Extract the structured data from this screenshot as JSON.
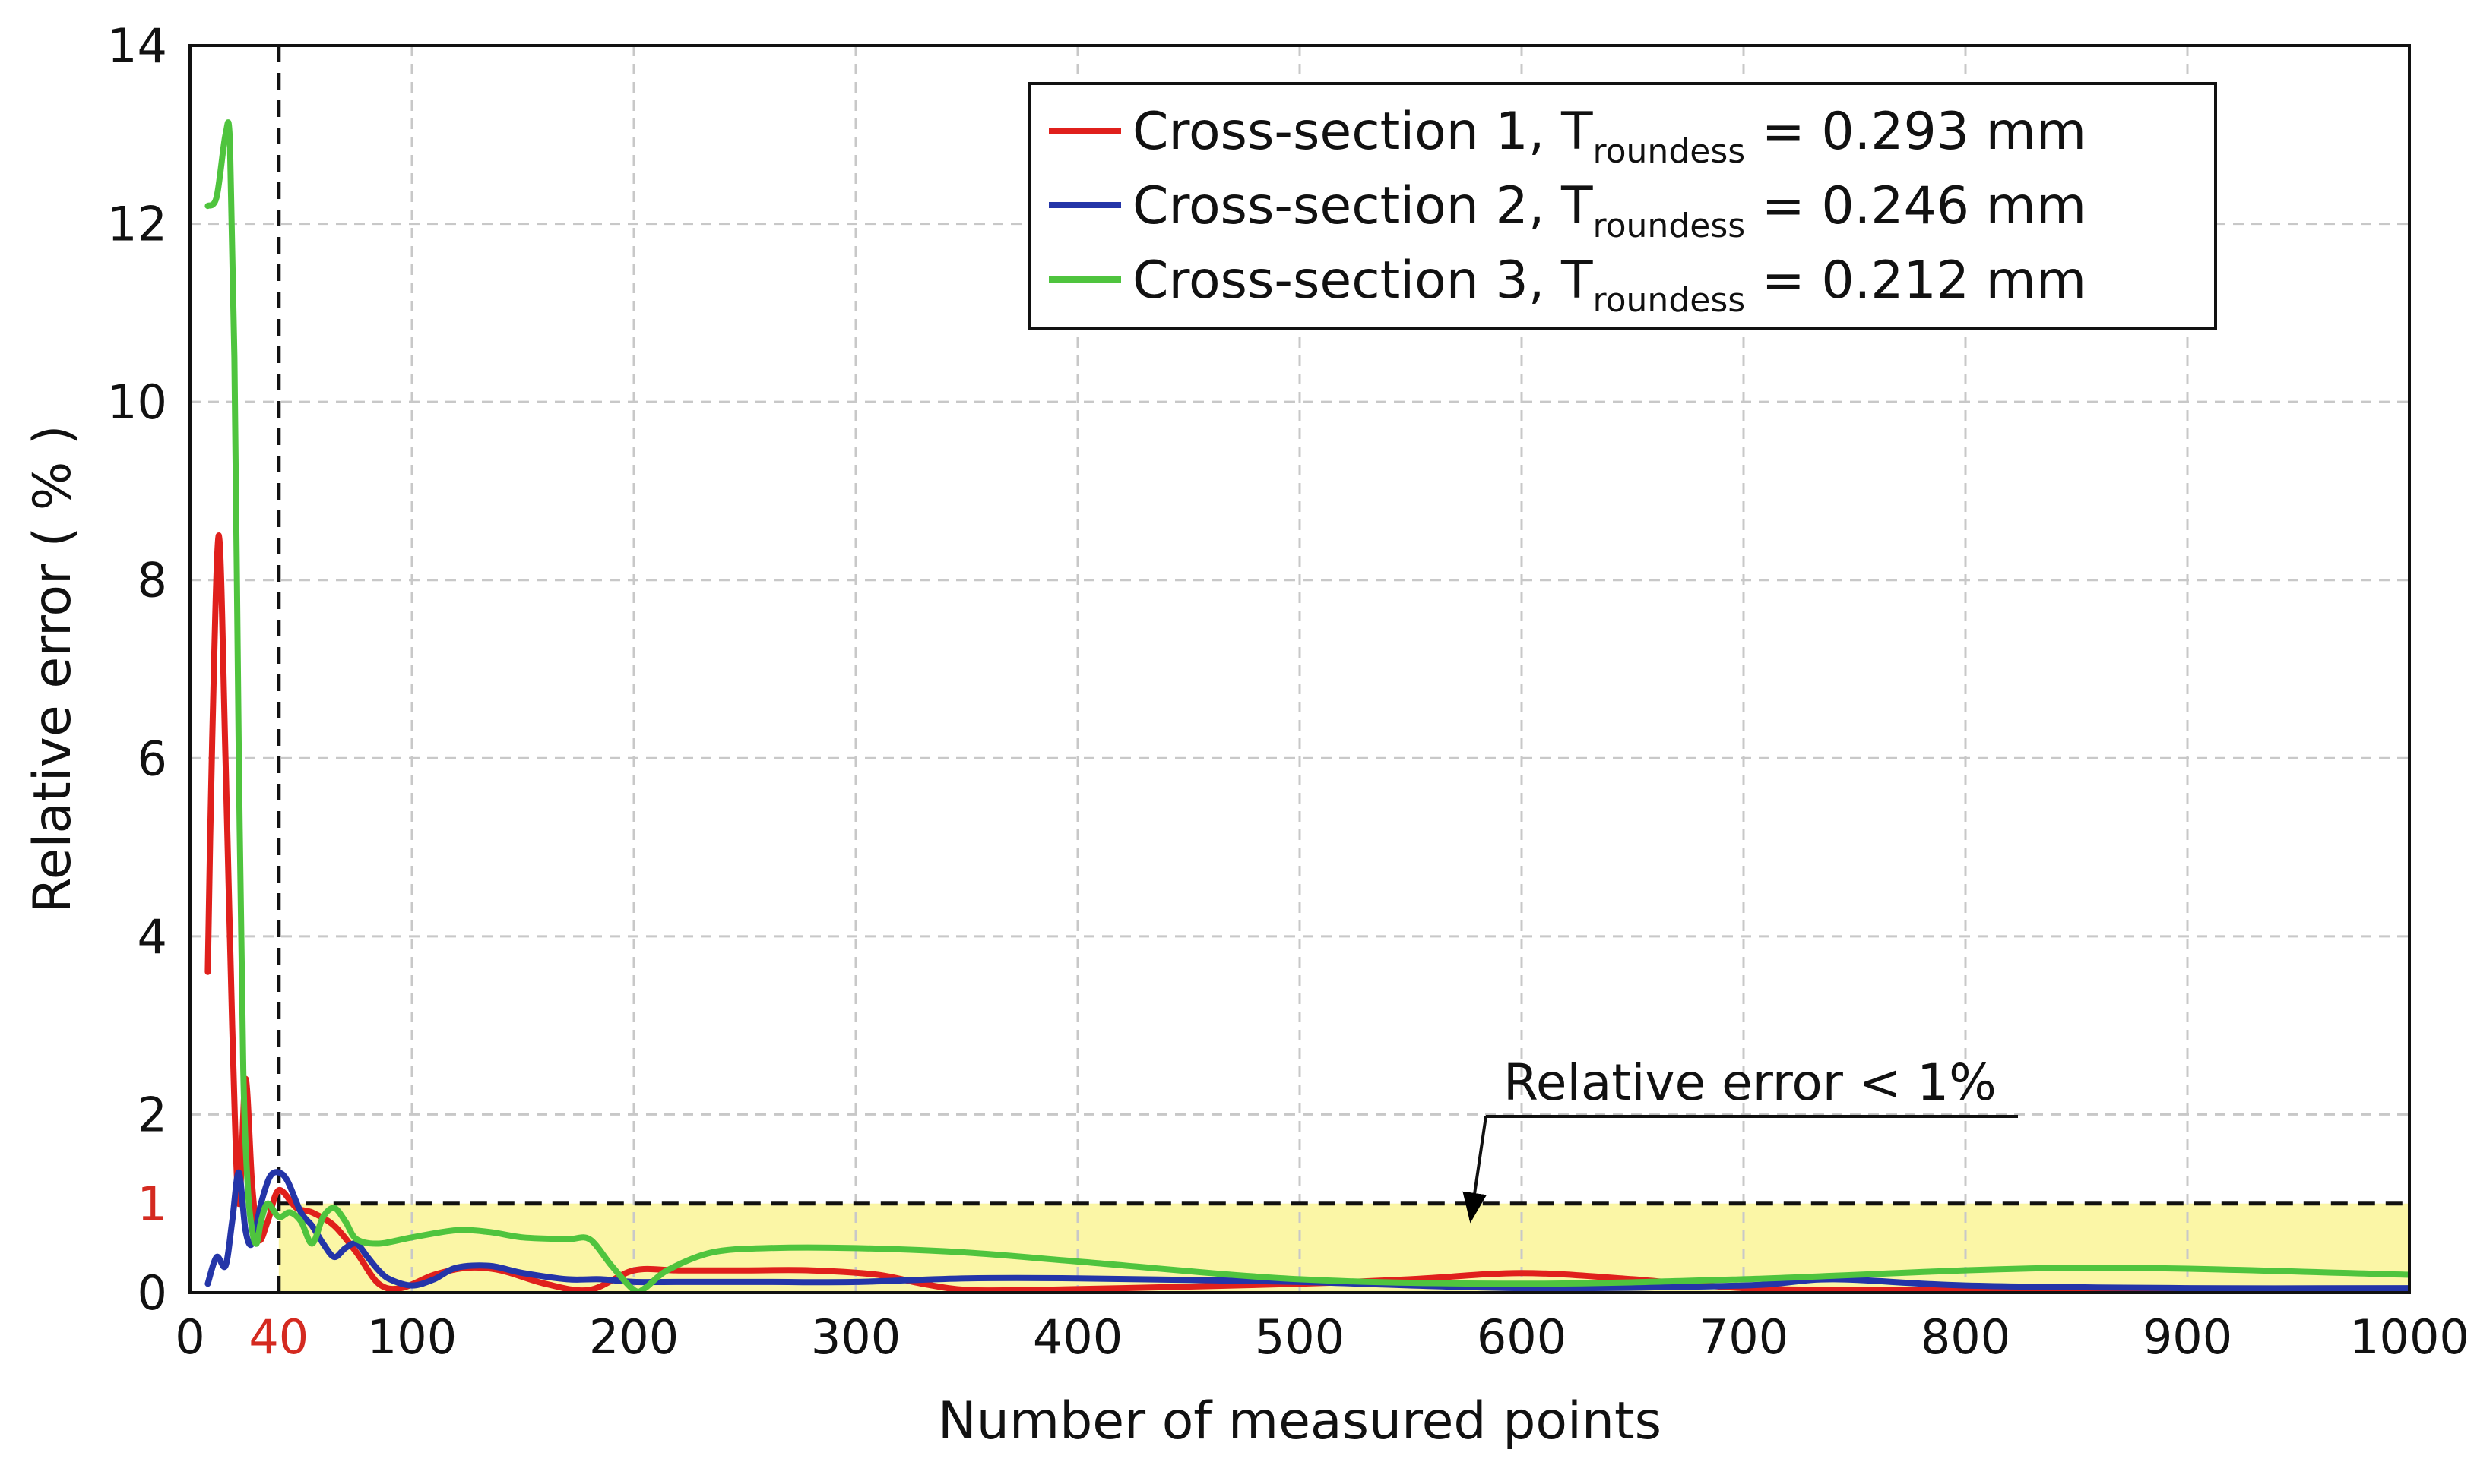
{
  "chart_data": {
    "type": "line",
    "title": "",
    "xlabel": "Number of measured points",
    "ylabel": "Relative error ( % )",
    "xlim": [
      0,
      1000
    ],
    "ylim": [
      0,
      14
    ],
    "grid": true,
    "x_ticks": [
      0,
      100,
      200,
      300,
      400,
      500,
      600,
      700,
      800,
      900,
      1000
    ],
    "y_ticks": [
      0,
      2,
      4,
      6,
      8,
      10,
      12,
      14
    ],
    "extra_y_tick": {
      "value": 1,
      "label": "1",
      "color": "#d42a20"
    },
    "extra_x_tick": {
      "value": 40,
      "label": "40",
      "color": "#d42a20"
    },
    "threshold": {
      "y": 1,
      "x_from": 40,
      "x_to": 1000,
      "fill": "#fbf6a6"
    },
    "vline": {
      "x": 40
    },
    "annotation": {
      "text": "Relative error < 1%",
      "arrow_to_x": 500,
      "arrow_to_y": 0.95
    },
    "legend": {
      "position": "top-right",
      "entries": [
        {
          "prefix": "Cross-section 1, T",
          "sub": "roundess",
          "suffix": " =  0.293  mm"
        },
        {
          "prefix": "Cross-section 2, T",
          "sub": "roundess",
          "suffix": " =  0.246  mm"
        },
        {
          "prefix": "Cross-section 3, T",
          "sub": "roundess",
          "suffix": " =  0.212  mm"
        }
      ]
    },
    "series": [
      {
        "name": "Cross-section 1",
        "color": "#e0201c",
        "x": [
          8,
          10,
          13,
          16,
          19,
          22,
          25,
          28,
          31,
          35,
          40,
          48,
          55,
          65,
          75,
          85,
          95,
          110,
          125,
          140,
          160,
          180,
          200,
          220,
          250,
          280,
          310,
          330,
          350,
          380,
          420,
          500,
          550,
          600,
          650,
          700,
          750,
          800,
          900,
          1000
        ],
        "y": [
          3.6,
          6.2,
          8.5,
          6.0,
          3.0,
          1.0,
          2.4,
          1.2,
          0.6,
          0.8,
          1.15,
          0.95,
          0.9,
          0.75,
          0.45,
          0.1,
          0.05,
          0.2,
          0.28,
          0.25,
          0.1,
          0.03,
          0.25,
          0.25,
          0.25,
          0.25,
          0.2,
          0.1,
          0.03,
          0.03,
          0.05,
          0.1,
          0.15,
          0.22,
          0.15,
          0.05,
          0.03,
          0.03,
          0.03,
          0.03
        ]
      },
      {
        "name": "Cross-section 2",
        "color": "#2435a8",
        "x": [
          8,
          12,
          16,
          19,
          22,
          25,
          28,
          32,
          36,
          40,
          44,
          50,
          55,
          60,
          65,
          70,
          75,
          80,
          85,
          90,
          100,
          110,
          120,
          135,
          150,
          170,
          185,
          200,
          220,
          260,
          300,
          350,
          400,
          500,
          600,
          700,
          740,
          800,
          900,
          1000
        ],
        "y": [
          0.1,
          0.4,
          0.3,
          0.8,
          1.35,
          0.7,
          0.55,
          1.0,
          1.3,
          1.35,
          1.25,
          0.9,
          0.75,
          0.55,
          0.4,
          0.5,
          0.55,
          0.4,
          0.25,
          0.15,
          0.08,
          0.15,
          0.28,
          0.3,
          0.22,
          0.15,
          0.15,
          0.12,
          0.12,
          0.12,
          0.12,
          0.16,
          0.16,
          0.12,
          0.05,
          0.08,
          0.15,
          0.08,
          0.05,
          0.05
        ]
      },
      {
        "name": "Cross-section 3",
        "color": "#4fc43e",
        "x": [
          8,
          12,
          16,
          18,
          20,
          22,
          24,
          26,
          28,
          30,
          32,
          35,
          40,
          45,
          50,
          55,
          60,
          65,
          70,
          75,
          85,
          100,
          120,
          135,
          150,
          170,
          180,
          190,
          200,
          205,
          215,
          235,
          260,
          300,
          350,
          400,
          500,
          600,
          700,
          850,
          1000
        ],
        "y": [
          12.2,
          12.3,
          13.0,
          12.9,
          10.5,
          6.0,
          2.5,
          1.2,
          0.7,
          0.55,
          0.8,
          1.0,
          0.85,
          0.9,
          0.8,
          0.55,
          0.85,
          0.95,
          0.8,
          0.6,
          0.55,
          0.62,
          0.7,
          0.68,
          0.62,
          0.6,
          0.6,
          0.3,
          0.03,
          0.05,
          0.25,
          0.45,
          0.5,
          0.5,
          0.45,
          0.35,
          0.15,
          0.1,
          0.15,
          0.28,
          0.2
        ]
      }
    ]
  }
}
